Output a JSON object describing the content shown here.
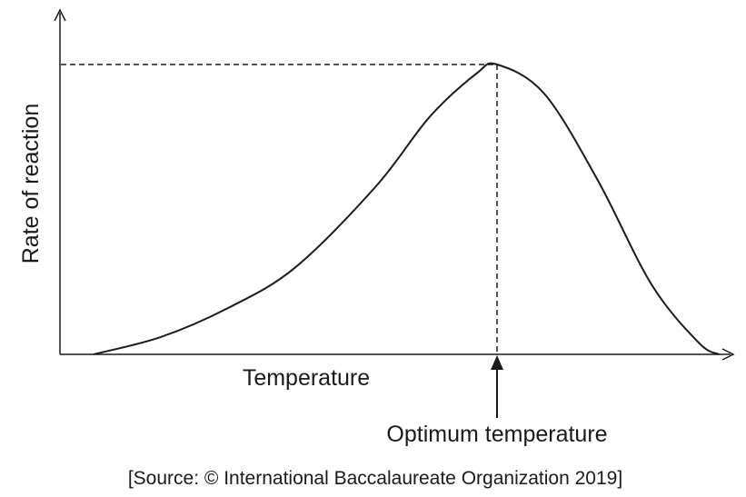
{
  "chart_data": {
    "type": "line",
    "xlabel": "Temperature",
    "ylabel": "Rate of reaction",
    "annotation": "Optimum temperature",
    "source": "[Source: © International Baccalaureate Organization 2019]",
    "ticks": "none",
    "grid": false,
    "legend": "none",
    "xlim": [
      0,
      100
    ],
    "ylim": [
      0,
      100
    ],
    "optimum": {
      "x": 65,
      "y": 100
    },
    "series": [
      {
        "values": [
          {
            "x": 5,
            "y": 0
          },
          {
            "x": 15,
            "y": 6
          },
          {
            "x": 25,
            "y": 16
          },
          {
            "x": 35,
            "y": 30
          },
          {
            "x": 47,
            "y": 58
          },
          {
            "x": 55,
            "y": 82
          },
          {
            "x": 62,
            "y": 97
          },
          {
            "x": 65,
            "y": 100
          },
          {
            "x": 72,
            "y": 90
          },
          {
            "x": 80,
            "y": 60
          },
          {
            "x": 88,
            "y": 24
          },
          {
            "x": 95,
            "y": 4
          },
          {
            "x": 98,
            "y": 0
          }
        ]
      }
    ],
    "colors": {
      "ink": "#1a1a1a",
      "background": "#ffffff"
    }
  }
}
